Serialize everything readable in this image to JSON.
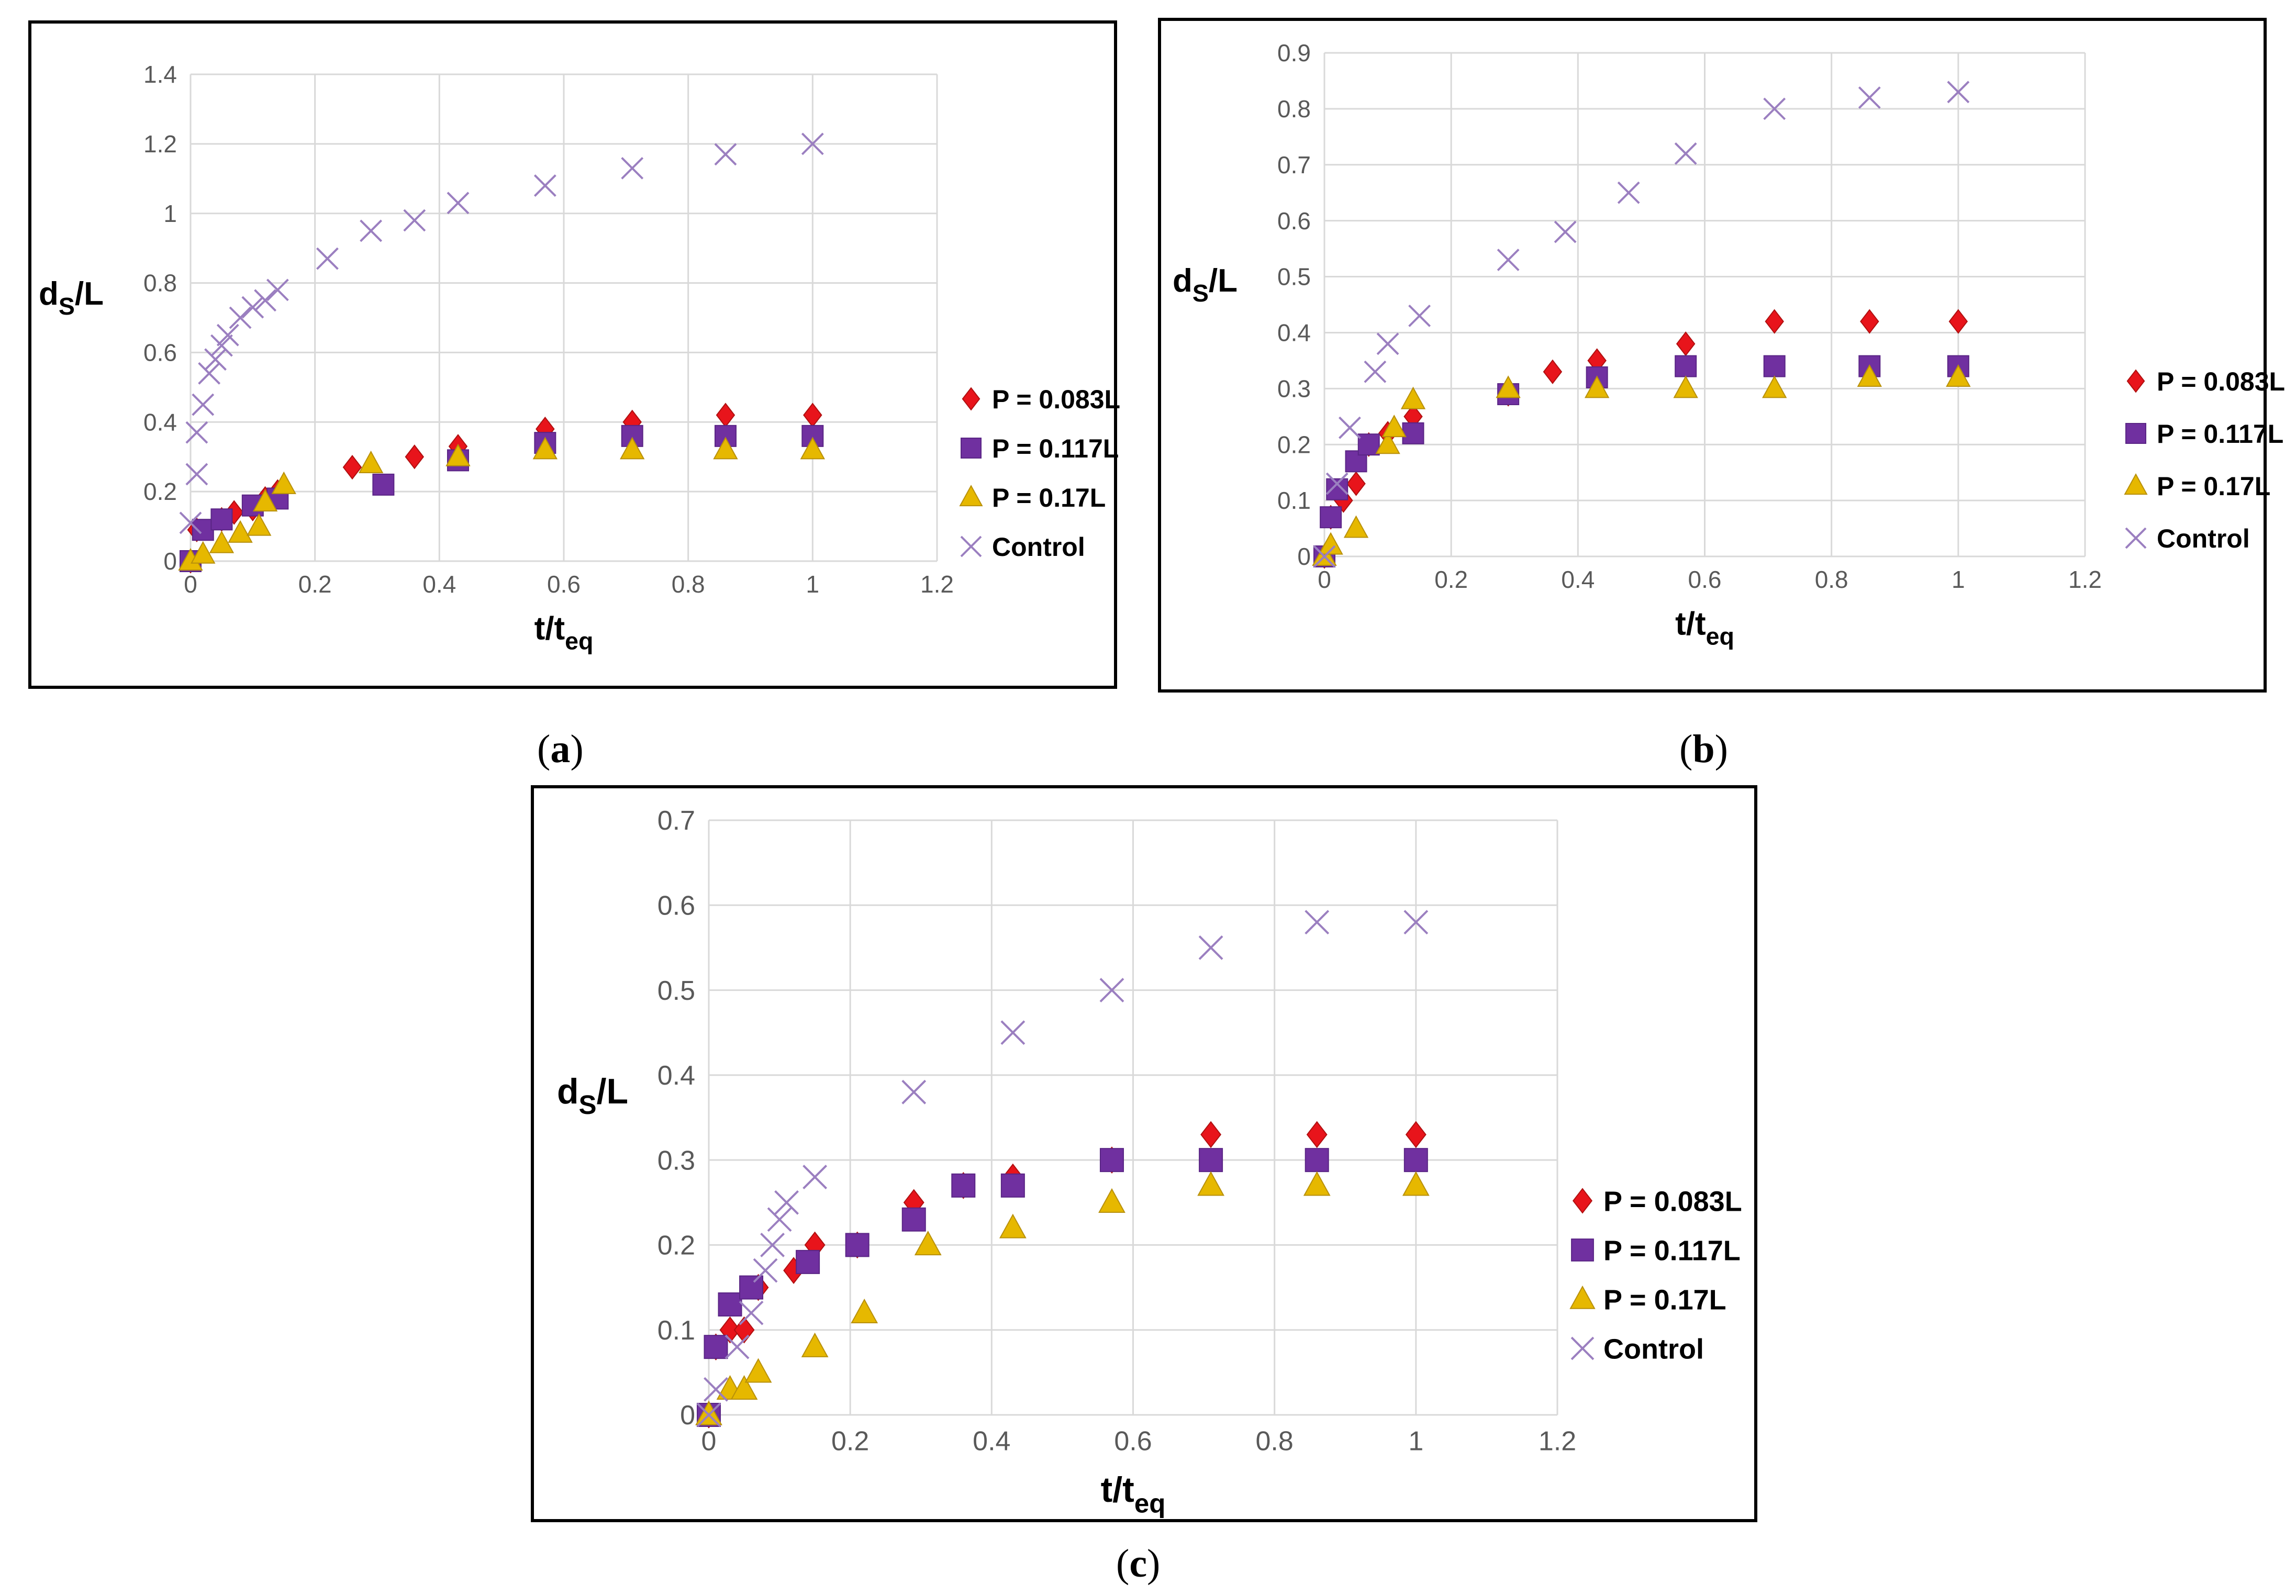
{
  "colors": {
    "p083": "#e8141b",
    "p117": "#7030a0",
    "p17": "#e6b800",
    "control": "#9b7fc0",
    "grid": "#d9d9d9",
    "axis": "#595959"
  },
  "legend_labels": [
    "P = 0.083L",
    "P = 0.117L",
    "P = 0.17L",
    "Control"
  ],
  "captions": {
    "a": {
      "open": "(",
      "letter": "a",
      "close": ")"
    },
    "b": {
      "open": "(",
      "letter": "b",
      "close": ")"
    },
    "c": {
      "open": "(",
      "letter": "c",
      "close": ")"
    }
  },
  "chart_data": [
    {
      "id": "a",
      "type": "scatter",
      "xlabel": "t/t",
      "xlabel_sub": "eq",
      "ylabel": "d",
      "ylabel_sub": "S",
      "ylabel_rest": "/L",
      "xlim": [
        0,
        1.2
      ],
      "ylim": [
        0,
        1.4
      ],
      "xticks": [
        "0",
        "0.2",
        "0.4",
        "0.6",
        "0.8",
        "1",
        "1.2"
      ],
      "yticks": [
        "0",
        "0.2",
        "0.4",
        "0.6",
        "0.8",
        "1",
        "1.2",
        "1.4"
      ],
      "legend": "right",
      "series": [
        {
          "name": "P = 0.083L",
          "marker": "diamond",
          "x": [
            0,
            0.01,
            0.05,
            0.07,
            0.1,
            0.12,
            0.14,
            0.26,
            0.36,
            0.43,
            0.57,
            0.71,
            0.86,
            1.0
          ],
          "y": [
            0,
            0.09,
            0.12,
            0.14,
            0.15,
            0.18,
            0.2,
            0.27,
            0.3,
            0.33,
            0.38,
            0.4,
            0.42,
            0.42
          ]
        },
        {
          "name": "P = 0.117L",
          "marker": "square",
          "x": [
            0,
            0.02,
            0.05,
            0.1,
            0.14,
            0.31,
            0.43,
            0.57,
            0.71,
            0.86,
            1.0
          ],
          "y": [
            0,
            0.09,
            0.12,
            0.16,
            0.18,
            0.22,
            0.29,
            0.34,
            0.36,
            0.36,
            0.36
          ]
        },
        {
          "name": "P = 0.17L",
          "marker": "triangle",
          "x": [
            0,
            0.02,
            0.05,
            0.08,
            0.11,
            0.12,
            0.15,
            0.29,
            0.43,
            0.57,
            0.71,
            0.86,
            1.0
          ],
          "y": [
            0,
            0.02,
            0.05,
            0.08,
            0.1,
            0.17,
            0.22,
            0.28,
            0.3,
            0.32,
            0.32,
            0.32,
            0.32
          ]
        },
        {
          "name": "Control",
          "marker": "x",
          "x": [
            0,
            0.01,
            0.01,
            0.02,
            0.03,
            0.04,
            0.05,
            0.06,
            0.08,
            0.1,
            0.12,
            0.14,
            0.22,
            0.29,
            0.36,
            0.43,
            0.57,
            0.71,
            0.86,
            1.0
          ],
          "y": [
            0.11,
            0.25,
            0.37,
            0.45,
            0.54,
            0.58,
            0.62,
            0.65,
            0.7,
            0.73,
            0.75,
            0.78,
            0.87,
            0.95,
            0.98,
            1.03,
            1.08,
            1.13,
            1.17,
            1.2
          ]
        }
      ]
    },
    {
      "id": "b",
      "type": "scatter",
      "xlabel": "t/t",
      "xlabel_sub": "eq",
      "ylabel": "d",
      "ylabel_sub": "S",
      "ylabel_rest": "/L",
      "xlim": [
        0,
        1.2
      ],
      "ylim": [
        0,
        0.9
      ],
      "xticks": [
        "0",
        "0.2",
        "0.4",
        "0.6",
        "0.8",
        "1",
        "1.2"
      ],
      "yticks": [
        "0",
        "0.1",
        "0.2",
        "0.3",
        "0.4",
        "0.5",
        "0.6",
        "0.7",
        "0.8",
        "0.9"
      ],
      "legend": "right",
      "series": [
        {
          "name": "P = 0.083L",
          "marker": "diamond",
          "x": [
            0,
            0.01,
            0.03,
            0.05,
            0.07,
            0.1,
            0.14,
            0.29,
            0.36,
            0.43,
            0.57,
            0.71,
            0.86,
            1.0
          ],
          "y": [
            0,
            0.07,
            0.1,
            0.13,
            0.2,
            0.22,
            0.25,
            0.29,
            0.33,
            0.35,
            0.38,
            0.42,
            0.42,
            0.42
          ]
        },
        {
          "name": "P = 0.117L",
          "marker": "square",
          "x": [
            0,
            0.01,
            0.02,
            0.05,
            0.07,
            0.14,
            0.29,
            0.43,
            0.57,
            0.71,
            0.86,
            1.0
          ],
          "y": [
            0,
            0.07,
            0.12,
            0.17,
            0.2,
            0.22,
            0.29,
            0.32,
            0.34,
            0.34,
            0.34,
            0.34
          ]
        },
        {
          "name": "P = 0.17L",
          "marker": "triangle",
          "x": [
            0,
            0.01,
            0.05,
            0.1,
            0.11,
            0.14,
            0.29,
            0.43,
            0.57,
            0.71,
            0.86,
            1.0
          ],
          "y": [
            0,
            0.02,
            0.05,
            0.2,
            0.23,
            0.28,
            0.3,
            0.3,
            0.3,
            0.3,
            0.32,
            0.32
          ]
        },
        {
          "name": "Control",
          "marker": "x",
          "x": [
            0,
            0.02,
            0.04,
            0.08,
            0.1,
            0.15,
            0.29,
            0.38,
            0.48,
            0.57,
            0.71,
            0.86,
            1.0
          ],
          "y": [
            0,
            0.13,
            0.23,
            0.33,
            0.38,
            0.43,
            0.53,
            0.58,
            0.65,
            0.72,
            0.8,
            0.82,
            0.83
          ]
        }
      ]
    },
    {
      "id": "c",
      "type": "scatter",
      "xlabel": "t/t",
      "xlabel_sub": "eq",
      "ylabel": "d",
      "ylabel_sub": "S",
      "ylabel_rest": "/L",
      "xlim": [
        0,
        1.2
      ],
      "ylim": [
        0,
        0.7
      ],
      "xticks": [
        "0",
        "0.2",
        "0.4",
        "0.6",
        "0.8",
        "1",
        "1.2"
      ],
      "yticks": [
        "0",
        "0.1",
        "0.2",
        "0.3",
        "0.4",
        "0.5",
        "0.6",
        "0.7"
      ],
      "legend": "right",
      "series": [
        {
          "name": "P = 0.083L",
          "marker": "diamond",
          "x": [
            0,
            0.01,
            0.03,
            0.05,
            0.07,
            0.12,
            0.15,
            0.21,
            0.29,
            0.36,
            0.43,
            0.57,
            0.71,
            0.86,
            1.0
          ],
          "y": [
            0,
            0.08,
            0.1,
            0.1,
            0.15,
            0.17,
            0.2,
            0.2,
            0.25,
            0.27,
            0.28,
            0.3,
            0.33,
            0.33,
            0.33
          ]
        },
        {
          "name": "P = 0.117L",
          "marker": "square",
          "x": [
            0,
            0.01,
            0.03,
            0.06,
            0.14,
            0.21,
            0.29,
            0.36,
            0.43,
            0.57,
            0.71,
            0.86,
            1.0
          ],
          "y": [
            0,
            0.08,
            0.13,
            0.15,
            0.18,
            0.2,
            0.23,
            0.27,
            0.27,
            0.3,
            0.3,
            0.3,
            0.3
          ]
        },
        {
          "name": "P = 0.17L",
          "marker": "triangle",
          "x": [
            0,
            0.03,
            0.05,
            0.07,
            0.15,
            0.22,
            0.31,
            0.43,
            0.57,
            0.71,
            0.86,
            1.0
          ],
          "y": [
            0,
            0.03,
            0.03,
            0.05,
            0.08,
            0.12,
            0.2,
            0.22,
            0.25,
            0.27,
            0.27,
            0.27
          ]
        },
        {
          "name": "Control",
          "marker": "x",
          "x": [
            0,
            0.01,
            0.04,
            0.06,
            0.08,
            0.09,
            0.1,
            0.11,
            0.15,
            0.29,
            0.43,
            0.57,
            0.71,
            0.86,
            1.0
          ],
          "y": [
            0,
            0.03,
            0.08,
            0.12,
            0.17,
            0.2,
            0.23,
            0.25,
            0.28,
            0.38,
            0.45,
            0.5,
            0.55,
            0.58,
            0.58
          ]
        }
      ]
    }
  ]
}
